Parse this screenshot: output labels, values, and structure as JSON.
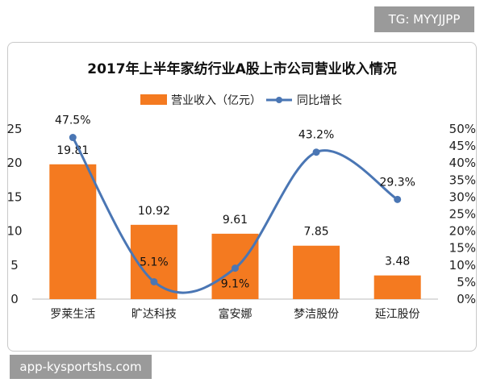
{
  "chart_data": {
    "type": "bar",
    "title": "2017年上半年家纺行业A股上市公司营业收入情况",
    "categories": [
      "罗莱生活",
      "旷达科技",
      "富安娜",
      "梦洁股份",
      "延江股份"
    ],
    "series": [
      {
        "name": "营业收入（亿元）",
        "type": "bar",
        "axis": "left",
        "values": [
          19.81,
          10.92,
          9.61,
          7.85,
          3.48
        ]
      },
      {
        "name": "同比增长",
        "type": "line",
        "axis": "right",
        "values": [
          47.5,
          5.1,
          9.1,
          43.2,
          29.3
        ]
      }
    ],
    "bar_labels": [
      "19.81",
      "10.92",
      "9.61",
      "7.85",
      "3.48"
    ],
    "line_labels": [
      "47.5%",
      "5.1%",
      "9.1%",
      "43.2%",
      "29.3%"
    ],
    "y_left": {
      "range": [
        0,
        25
      ],
      "ticks": [
        "0",
        "5",
        "10",
        "15",
        "20",
        "25"
      ]
    },
    "y_right": {
      "range": [
        0,
        50
      ],
      "ticks": [
        "0%",
        "5%",
        "10%",
        "15%",
        "20%",
        "25%",
        "30%",
        "35%",
        "40%",
        "45%",
        "50%"
      ]
    },
    "legend_position": "top",
    "grid": false,
    "colors": {
      "bar": "#f47a20",
      "line": "#4a76b4"
    }
  },
  "tags": {
    "top_right": "TG: MYYJJPP",
    "bottom_left": "app-kysportshs.com"
  }
}
